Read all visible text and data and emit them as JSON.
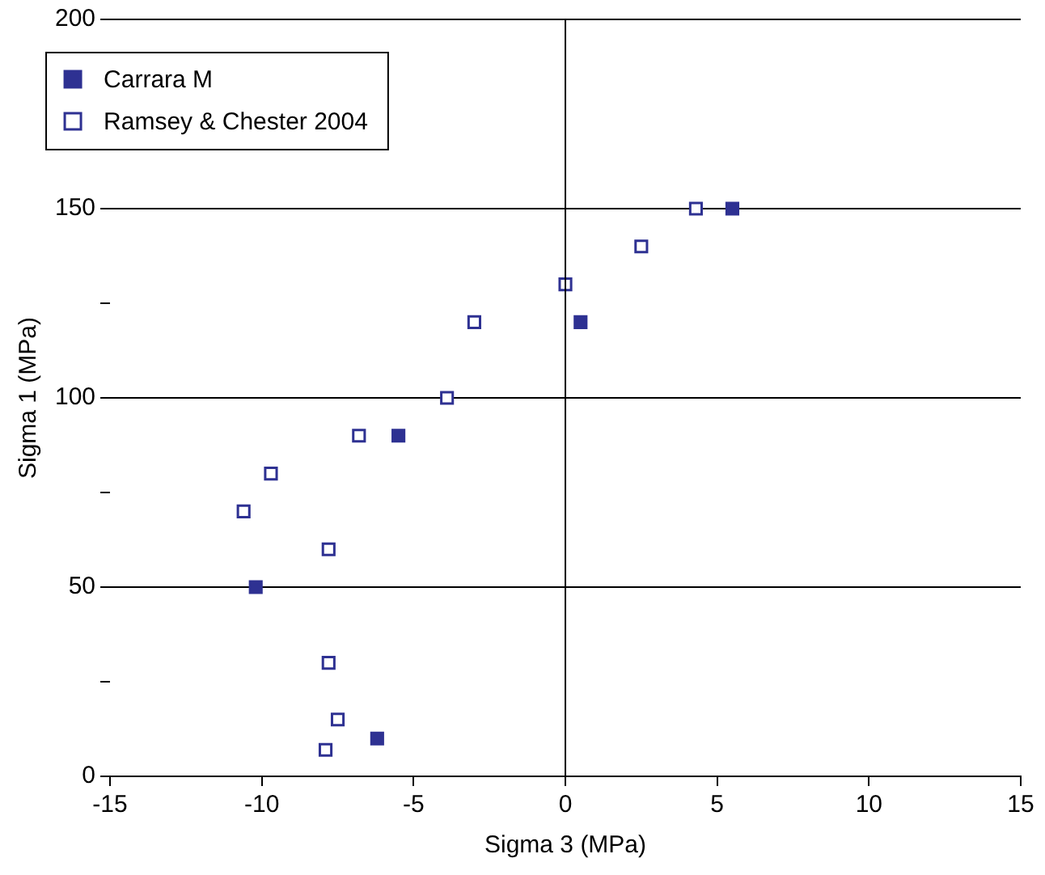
{
  "chart_data": {
    "type": "scatter",
    "xlabel": "Sigma 3 (MPa)",
    "ylabel": "Sigma 1 (MPa)",
    "xlim": [
      -15,
      15
    ],
    "xticks": [
      -15,
      -10,
      -5,
      0,
      5,
      10,
      15
    ],
    "ylim": [
      0,
      200
    ],
    "yticks": [
      0,
      {
        "value": 25,
        "label": null
      },
      50,
      {
        "value": 75,
        "label": null
      },
      100,
      {
        "value": 125,
        "label": null
      },
      150,
      {
        "value": 175,
        "label": null
      },
      200
    ],
    "grid": "y",
    "legend": "top left",
    "marker": "square",
    "ref_lines": [
      {
        "axis": "x",
        "value": 0
      }
    ],
    "series": [
      {
        "name": "Carrara M",
        "color": "#2e3192",
        "x": [
          5.5,
          0.5,
          -5.5,
          -10.2,
          -6.2
        ],
        "values": [
          150,
          120,
          90,
          50,
          10
        ]
      },
      {
        "name": "Ramsey & Chester 2004",
        "color": "#2e3192",
        "x": [
          4.3,
          2.5,
          0,
          -3,
          -3.9,
          -6.8,
          -9.7,
          -10.6,
          -7.8,
          -7.8,
          -7.5,
          -7.9
        ],
        "values": [
          150,
          140,
          130,
          120,
          100,
          90,
          80,
          70,
          60,
          30,
          15,
          7
        ]
      }
    ]
  }
}
